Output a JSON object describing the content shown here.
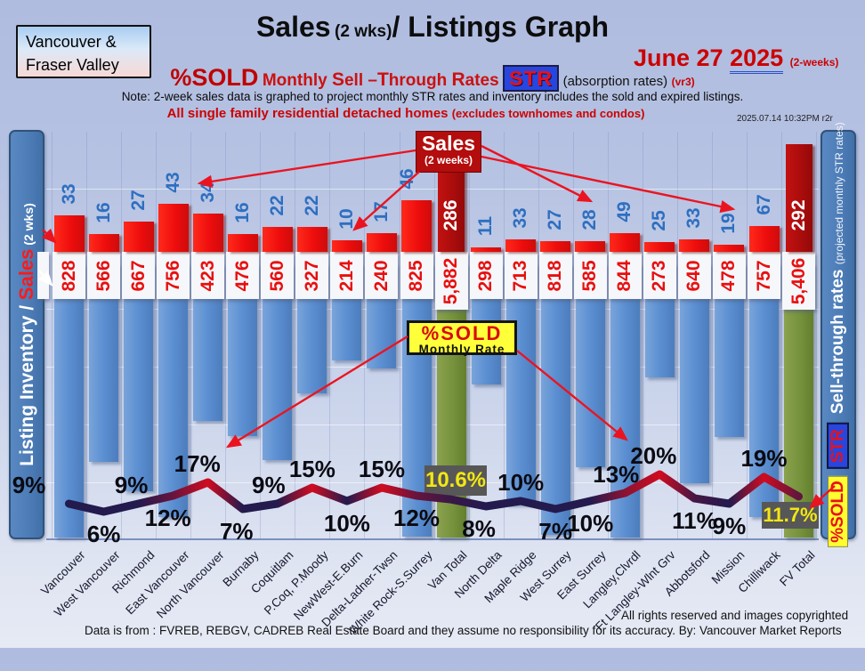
{
  "header": {
    "region_label": [
      "Vancouver &",
      "Fraser Valley"
    ],
    "title": {
      "part1": "Sales",
      "part2": "(2 wks)",
      "part3": "/ Listings Graph"
    },
    "date": {
      "main": "June 27",
      "year": "2025",
      "suffix": "(2-weeks)"
    },
    "str_line": {
      "lead": "%SOLD",
      "parts": [
        "Monthly ",
        "S",
        "ell –",
        "T",
        "hrough ",
        "R",
        "ates"
      ],
      "badge": "STR",
      "tail": "(absorption rates)",
      "version": "(vr3)"
    },
    "note": "Note: 2-week sales data is graphed to project monthly STR rates and inventory includes the sold and expired listings.",
    "subtitle": "All single family residential detached homes ",
    "subtitle_small": "(excludes townhomes and condos)",
    "timestamp": "2025.07.14 10:32PM r2r"
  },
  "left_axis": {
    "label_main": "Listing Inventory / ",
    "label_sales": "Sales",
    "label_small": " (2 wks)"
  },
  "right_axis": {
    "label_main": "Sell-through rates ",
    "label_small": "(projected monthly STR rates)",
    "badge_str": "STR",
    "badge_sold": "%SOLD"
  },
  "callouts": {
    "sales_title": "Sales",
    "sales_sub": "(2 weeks)",
    "pctsold_title": "%SOLD",
    "pctsold_sub": "Monthly Rate"
  },
  "footer": {
    "rights": "All rights reserved and images copyrighted",
    "source": "Data is from : FVREB, REBGV, CADREB Real Estate Board and they assume no responsibility for its accuracy. By: Vancouver Market Reports"
  },
  "colors": {
    "sales_bar": "#ee0d0d",
    "totals_sales_bar": "#a90c0c",
    "inventory_bar": "#5b8fd2",
    "totals_inventory_bar": "#76923c",
    "band_bg": "#f6f7fa",
    "str_line_low": "#231a4e",
    "str_line_high": "#d00c20",
    "pct_box_bg": "#575757",
    "pct_box_text": "#f2e713",
    "accent_red": "#cc0202",
    "badge_blue": "#2746e0",
    "badge_yellow": "#ffff2f",
    "arrow_red": "#ea1420"
  },
  "chart_data": {
    "type": "bar+line",
    "title": "Sales (2 wks)/ Listings Graph — %SOLD Monthly Sell-Through Rates (STR), June 27 2025 (2-weeks)",
    "ylabel_left": "Listing Inventory / Sales (2 wks)",
    "ylabel_right": "Sell-through rates (projected monthly STR rates)",
    "legend_position": "none",
    "x_tick_rotation": -45,
    "categories": [
      "Vancouver",
      "West Vancouver",
      "Richmond",
      "East Vancouver",
      "North Vancouver",
      "Burnaby",
      "Coquitlam",
      "P.Coq, P.Moody",
      "NewWest-E.Burn",
      "Delta-Ladner-Twsn",
      "White Rock-S.Surrey",
      "Van Total",
      "North Delta",
      "Maple Ridge",
      "West Surrey",
      "East Surrey",
      "Langley,Clvrdl",
      "Ft Langley-Wlnt Grv",
      "Abbotsford",
      "Mission",
      "Chilliwack",
      "FV Total"
    ],
    "series": [
      {
        "name": "Sales (2 weeks)",
        "type": "bar",
        "values": [
          33,
          16,
          27,
          43,
          34,
          16,
          22,
          22,
          10,
          17,
          46,
          286,
          11,
          33,
          27,
          28,
          49,
          25,
          33,
          19,
          67,
          292
        ]
      },
      {
        "name": "Listing Inventory (includes sold and expired)",
        "type": "bar",
        "values": [
          828,
          566,
          667,
          756,
          423,
          476,
          560,
          327,
          214,
          240,
          825,
          5882,
          298,
          713,
          818,
          585,
          844,
          273,
          640,
          478,
          757,
          5406
        ]
      },
      {
        "name": "%SOLD Monthly Rate (projected STR)",
        "type": "line",
        "values": [
          9,
          6,
          9,
          12,
          17,
          7,
          9,
          15,
          10,
          15,
          12,
          10.6,
          8,
          10,
          7,
          10,
          13,
          20,
          11,
          9,
          19,
          11.7
        ]
      }
    ],
    "sales_labels": [
      "33",
      "16",
      "27",
      "43",
      "34",
      "16",
      "22",
      "22",
      "10",
      "17",
      "46",
      "286",
      "11",
      "33",
      "27",
      "28",
      "49",
      "25",
      "33",
      "19",
      "67",
      "292"
    ],
    "inventory_labels": [
      "828",
      "566",
      "667",
      "756",
      "423",
      "476",
      "560",
      "327",
      "214",
      "240",
      "825",
      "5,882",
      "298",
      "713",
      "818",
      "585",
      "844",
      "273",
      "640",
      "478",
      "757",
      "5,406"
    ],
    "pct_labels": [
      "9%",
      "6%",
      "9%",
      "12%",
      "17%",
      "7%",
      "9%",
      "15%",
      "10%",
      "15%",
      "12%",
      "10.6%",
      "8%",
      "10%",
      "7%",
      "10%",
      "13%",
      "20%",
      "11%",
      "9%",
      "19%",
      "11.7%"
    ],
    "pct_label_pos": [
      "above",
      "below",
      "above",
      "below",
      "above",
      "below",
      "above",
      "above",
      "below",
      "above",
      "below",
      "box",
      "below",
      "above",
      "below",
      "below",
      "above",
      "above",
      "below",
      "below",
      "above",
      "box"
    ],
    "total_indices": [
      11,
      21
    ]
  }
}
